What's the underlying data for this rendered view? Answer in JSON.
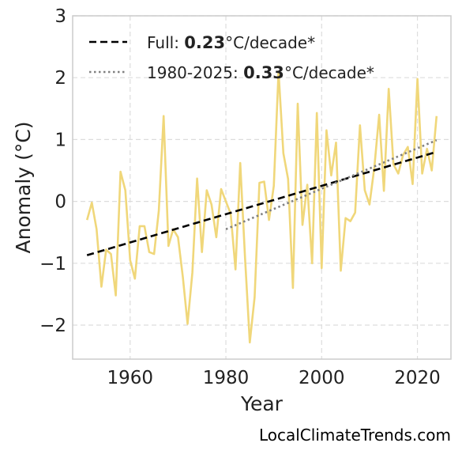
{
  "watermark": "LocalClimateTrends.com",
  "chart_data": {
    "type": "line",
    "xlabel": "Year",
    "ylabel": "Anomaly (°C)",
    "xlim": [
      1948,
      2027
    ],
    "ylim": [
      -2.55,
      3.0
    ],
    "x_ticks": [
      1960,
      1980,
      2000,
      2020
    ],
    "y_ticks": [
      -2,
      -1,
      0,
      1,
      2,
      3
    ],
    "y_tick_labels": [
      "−2",
      "−1",
      "0",
      "1",
      "2",
      "3"
    ],
    "grid": true,
    "legend_position": "top-left",
    "colors": {
      "series": "#f0d77a",
      "full_trend": "#000000",
      "recent_trend": "#808080",
      "grid": "#dddddd",
      "frame": "#cccccc"
    },
    "series": [
      {
        "x": [
          1951,
          1952,
          1953,
          1954,
          1955,
          1956,
          1957,
          1958,
          1959,
          1960,
          1961,
          1962,
          1963,
          1964,
          1965,
          1966,
          1967,
          1968,
          1969,
          1970,
          1971,
          1972,
          1973,
          1974,
          1975,
          1976,
          1977,
          1978,
          1979,
          1980,
          1981,
          1982,
          1983,
          1984,
          1985,
          1986,
          1987,
          1988,
          1989,
          1990,
          1991,
          1992,
          1993,
          1994,
          1995,
          1996,
          1997,
          1998,
          1999,
          2000,
          2001,
          2002,
          2003,
          2004,
          2005,
          2006,
          2007,
          2008,
          2009,
          2010,
          2011,
          2012,
          2013,
          2014,
          2015,
          2016,
          2017,
          2018,
          2019,
          2020,
          2021,
          2022,
          2023,
          2024
        ],
        "values": [
          -0.3,
          -0.02,
          -0.45,
          -1.38,
          -0.78,
          -0.85,
          -1.52,
          0.48,
          0.18,
          -0.95,
          -1.25,
          -0.4,
          -0.4,
          -0.82,
          -0.85,
          -0.15,
          1.38,
          -0.72,
          -0.45,
          -0.58,
          -1.22,
          -1.98,
          -1.15,
          0.37,
          -0.82,
          0.18,
          -0.05,
          -0.58,
          0.2,
          0.0,
          -0.2,
          -1.1,
          0.62,
          -0.92,
          -2.28,
          -1.55,
          0.3,
          0.32,
          -0.3,
          0.25,
          2.1,
          0.78,
          0.36,
          -1.4,
          1.58,
          -0.38,
          0.27,
          -1.0,
          1.43,
          -1.08,
          1.15,
          0.42,
          0.95,
          -1.12,
          -0.27,
          -0.32,
          -0.18,
          1.23,
          0.18,
          -0.05,
          0.55,
          1.4,
          0.17,
          1.82,
          0.6,
          0.45,
          0.75,
          0.88,
          0.28,
          1.98,
          0.45,
          0.85,
          0.5,
          1.38
        ]
      }
    ],
    "trends": [
      {
        "label_prefix": "Full: ",
        "rate": "0.23",
        "label_suffix": "°C/decade*",
        "x": [
          1951,
          2024
        ],
        "values": [
          -0.87,
          0.8
        ],
        "style": "dashed"
      },
      {
        "label_prefix": "1980-2025: ",
        "rate": "0.33",
        "label_suffix": "°C/decade*",
        "x": [
          1980,
          2024
        ],
        "values": [
          -0.45,
          0.99
        ],
        "style": "dotted"
      }
    ]
  }
}
